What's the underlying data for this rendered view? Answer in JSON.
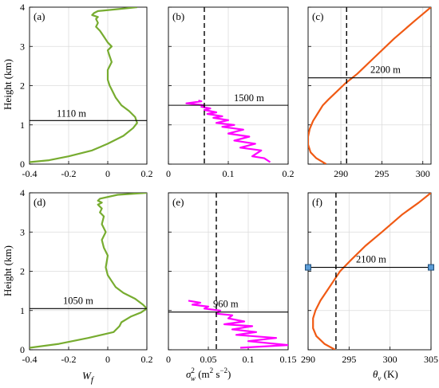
{
  "chart_data": [
    {
      "panel": "(a)",
      "type": "line",
      "xlim": [
        -0.4,
        0.2
      ],
      "ylim": [
        0,
        4
      ],
      "xticks": [
        -0.4,
        -0.2,
        0,
        0.2
      ],
      "xticklabels": [
        "-0.4",
        "-0.2",
        "0",
        "0.2"
      ],
      "yticks": [
        0,
        1,
        2,
        3,
        4
      ],
      "yticklabels": [
        "0",
        "1",
        "2",
        "3",
        "4"
      ],
      "ylabel": "Height (km)",
      "xlabel": "",
      "line_color": "#77ac30",
      "series": [
        {
          "x": [
            -0.4,
            -0.3,
            -0.2,
            -0.08,
            0.0,
            0.08,
            0.13,
            0.15,
            0.14,
            0.11,
            0.07,
            0.04,
            0.02,
            0.01,
            0.0,
            0.0,
            0.02,
            0.01,
            0.0,
            0.02,
            0.0,
            -0.02,
            -0.04,
            -0.06,
            -0.05,
            -0.06,
            -0.05,
            -0.08,
            -0.07,
            -0.05,
            0.05,
            0.15
          ],
          "y": [
            0.05,
            0.1,
            0.2,
            0.35,
            0.52,
            0.72,
            0.92,
            1.05,
            1.2,
            1.35,
            1.5,
            1.7,
            1.9,
            2.0,
            2.15,
            2.4,
            2.6,
            2.75,
            2.9,
            3.0,
            3.1,
            3.25,
            3.4,
            3.5,
            3.6,
            3.7,
            3.75,
            3.8,
            3.85,
            3.9,
            3.95,
            4.0
          ]
        }
      ],
      "hline": {
        "y": 1.11,
        "label": "1110 m"
      }
    },
    {
      "panel": "(b)",
      "type": "line",
      "xlim": [
        0,
        0.2
      ],
      "ylim": [
        0,
        4
      ],
      "xticks": [
        0,
        0.1,
        0.2
      ],
      "xticklabels": [
        "0",
        "0.1",
        "0.2"
      ],
      "yticks": [
        0,
        1,
        2,
        3,
        4
      ],
      "yticklabels": [
        "",
        "",
        "",
        "",
        ""
      ],
      "line_color": "#ff00ff",
      "series": [
        {
          "x": [
            0.17,
            0.16,
            0.14,
            0.155,
            0.12,
            0.145,
            0.11,
            0.135,
            0.1,
            0.125,
            0.09,
            0.11,
            0.08,
            0.1,
            0.075,
            0.09,
            0.065,
            0.08,
            0.06,
            0.07,
            0.055,
            0.06,
            0.03,
            0.055,
            0.05
          ],
          "y": [
            0.05,
            0.15,
            0.2,
            0.35,
            0.42,
            0.52,
            0.6,
            0.7,
            0.78,
            0.88,
            0.95,
            1.0,
            1.05,
            1.12,
            1.18,
            1.22,
            1.28,
            1.32,
            1.38,
            1.42,
            1.46,
            1.5,
            1.55,
            1.6,
            1.62
          ]
        }
      ],
      "vline": {
        "x": 0.06
      },
      "hline": {
        "y": 1.5,
        "label": "1500 m"
      }
    },
    {
      "panel": "(c)",
      "type": "line",
      "xlim": [
        286,
        301
      ],
      "ylim": [
        0,
        4
      ],
      "xticks": [
        290,
        295,
        300
      ],
      "xticklabels": [
        "290",
        "295",
        "300"
      ],
      "yticks": [
        0,
        1,
        2,
        3,
        4
      ],
      "yticklabels": [
        "",
        "",
        "",
        "",
        ""
      ],
      "line_color": "#f05a14",
      "series": [
        {
          "x": [
            288.2,
            287.0,
            286.3,
            286.0,
            286.0,
            286.2,
            286.6,
            287.2,
            287.8,
            288.5,
            289.5,
            290.5,
            292.0,
            294.0,
            296.5,
            299.0,
            301.0
          ],
          "y": [
            0.0,
            0.15,
            0.3,
            0.5,
            0.7,
            0.9,
            1.1,
            1.3,
            1.5,
            1.65,
            1.85,
            2.05,
            2.3,
            2.7,
            3.2,
            3.65,
            4.0
          ]
        }
      ],
      "vline": {
        "x": 290.7
      },
      "hline": {
        "y": 2.2,
        "label": "2200 m"
      }
    },
    {
      "panel": "(d)",
      "type": "line",
      "xlim": [
        -0.4,
        0.2
      ],
      "ylim": [
        0,
        4
      ],
      "xticks": [
        -0.4,
        -0.2,
        0,
        0.2
      ],
      "xticklabels": [
        "-0.4",
        "-0.2",
        "0",
        "0.2"
      ],
      "yticks": [
        0,
        1,
        2,
        3,
        4
      ],
      "yticklabels": [
        "0",
        "1",
        "2",
        "3",
        "4"
      ],
      "ylabel": "Height (km)",
      "xlabel": "W_f",
      "line_color": "#77ac30",
      "series": [
        {
          "x": [
            -0.4,
            -0.25,
            -0.1,
            0.03,
            0.06,
            0.07,
            0.12,
            0.17,
            0.2,
            0.18,
            0.14,
            0.08,
            0.04,
            0.02,
            0.0,
            -0.01,
            0.0,
            -0.02,
            -0.03,
            -0.01,
            -0.03,
            -0.02,
            -0.04,
            -0.03,
            -0.05,
            -0.03,
            -0.05,
            -0.04,
            0.05,
            0.2
          ],
          "y": [
            0.05,
            0.15,
            0.3,
            0.45,
            0.6,
            0.7,
            0.85,
            0.95,
            1.05,
            1.15,
            1.3,
            1.45,
            1.6,
            1.75,
            1.9,
            2.1,
            2.4,
            2.6,
            2.8,
            3.0,
            3.2,
            3.4,
            3.5,
            3.6,
            3.7,
            3.75,
            3.8,
            3.85,
            3.95,
            4.0
          ]
        }
      ],
      "hline": {
        "y": 1.05,
        "label": "1050 m"
      }
    },
    {
      "panel": "(e)",
      "type": "line",
      "xlim": [
        0,
        0.15
      ],
      "ylim": [
        0,
        4
      ],
      "xticks": [
        0,
        0.05,
        0.1,
        0.15
      ],
      "xticklabels": [
        "0",
        "0.05",
        "0.1",
        "0.15"
      ],
      "yticks": [
        0,
        1,
        2,
        3,
        4
      ],
      "yticklabels": [
        "",
        "",
        "",
        "",
        ""
      ],
      "xlabel": "σ_w^2 (m^2 s^-2)",
      "line_color": "#ff00ff",
      "series": [
        {
          "x": [
            0.09,
            0.15,
            0.1,
            0.135,
            0.085,
            0.11,
            0.08,
            0.105,
            0.07,
            0.095,
            0.075,
            0.08,
            0.06,
            0.065,
            0.045,
            0.05,
            0.03,
            0.04,
            0.025
          ],
          "y": [
            0.05,
            0.12,
            0.22,
            0.3,
            0.38,
            0.45,
            0.52,
            0.6,
            0.65,
            0.72,
            0.8,
            0.88,
            0.92,
            1.0,
            1.05,
            1.1,
            1.15,
            1.2,
            1.25
          ]
        }
      ],
      "vline": {
        "x": 0.06
      },
      "hline": {
        "y": 0.96,
        "label": "960 m"
      }
    },
    {
      "panel": "(f)",
      "type": "line",
      "xlim": [
        290,
        305
      ],
      "ylim": [
        0,
        4
      ],
      "xticks": [
        290,
        295,
        300,
        305
      ],
      "xticklabels": [
        "290",
        "295",
        "300",
        "305"
      ],
      "yticks": [
        0,
        1,
        2,
        3,
        4
      ],
      "yticklabels": [
        "",
        "",
        "",
        "",
        ""
      ],
      "xlabel": "θ_v (K)",
      "line_color": "#f05a14",
      "series": [
        {
          "x": [
            293.3,
            292.0,
            291.0,
            290.6,
            290.6,
            290.9,
            291.5,
            292.3,
            293.1,
            293.9,
            295.3,
            297.0,
            299.0,
            301.5,
            303.5,
            305.0
          ],
          "y": [
            0.0,
            0.15,
            0.35,
            0.55,
            0.8,
            1.0,
            1.25,
            1.5,
            1.75,
            2.0,
            2.3,
            2.65,
            3.0,
            3.45,
            3.75,
            4.0
          ]
        }
      ],
      "vline": {
        "x": 293.4
      },
      "hline": {
        "y": 2.1,
        "label": "2100 m",
        "markers": "squares"
      }
    }
  ],
  "labels": {
    "ylabel": "Height (km)",
    "xlabel_d_main": "W",
    "xlabel_d_sub": "f",
    "xlabel_e_sigma": "σ",
    "xlabel_e_sup": "2",
    "xlabel_e_sub": "w",
    "xlabel_e_units_open": " (m",
    "xlabel_e_units_sup1": "2",
    "xlabel_e_units_mid": " s",
    "xlabel_e_units_sup2": "−2",
    "xlabel_e_units_close": ")",
    "xlabel_f_theta": "θ",
    "xlabel_f_sub": "v",
    "xlabel_f_units": " (K)"
  },
  "colors": {
    "green": "#77ac30",
    "magenta": "#ff00ff",
    "orange": "#f05a14",
    "marker_fill": "#5b9bd5"
  }
}
